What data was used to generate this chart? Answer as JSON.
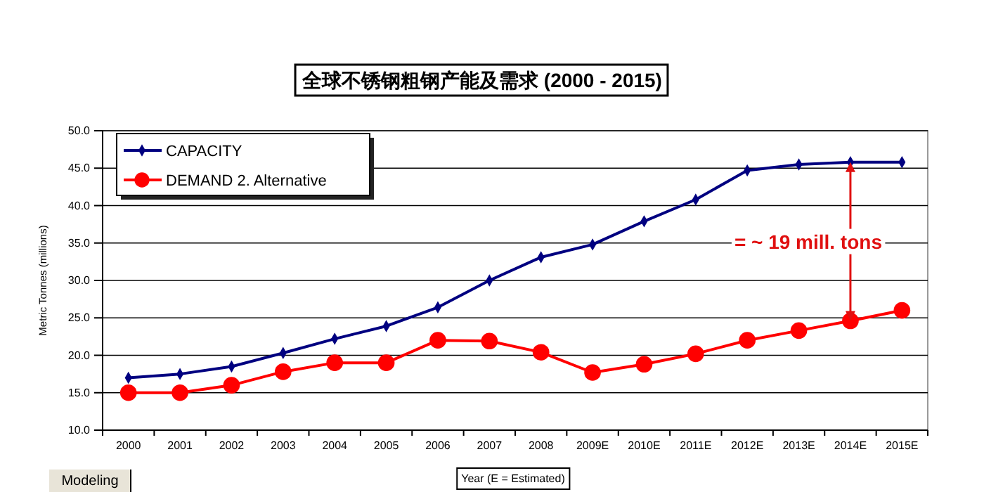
{
  "chart_data": {
    "type": "line",
    "title": "全球不锈钢粗钢产能及需求 (2000 - 2015)",
    "xlabel": "Year (E = Estimated)",
    "ylabel": "Metric Tonnes (millions)",
    "categories": [
      "2000",
      "2001",
      "2002",
      "2003",
      "2004",
      "2005",
      "2006",
      "2007",
      "2008",
      "2009E",
      "2010E",
      "2011E",
      "2012E",
      "2013E",
      "2014E",
      "2015E"
    ],
    "series": [
      {
        "name": "CAPACITY",
        "color": "#000080",
        "marker": "diamond",
        "values": [
          17.0,
          17.5,
          18.5,
          20.3,
          22.2,
          23.9,
          26.4,
          30.0,
          33.1,
          34.8,
          37.9,
          40.8,
          44.7,
          45.5,
          45.8,
          45.8
        ]
      },
      {
        "name": "DEMAND 2. Alternative",
        "color": "#ff0000",
        "marker": "circle",
        "values": [
          15.0,
          15.0,
          16.0,
          17.8,
          19.0,
          19.0,
          22.0,
          21.9,
          20.4,
          17.7,
          18.8,
          20.2,
          22.0,
          23.3,
          24.6,
          26.0
        ]
      }
    ],
    "ylim": [
      10,
      50
    ],
    "yticks": [
      {
        "value": 10,
        "label": "10.0"
      },
      {
        "value": 15,
        "label": "15.0"
      },
      {
        "value": 20,
        "label": "20.0"
      },
      {
        "value": 25,
        "label": "25.0"
      },
      {
        "value": 30,
        "label": "30.0"
      },
      {
        "value": 35,
        "label": "35.0"
      },
      {
        "value": 40,
        "label": "40.0"
      },
      {
        "value": 45,
        "label": "45.0"
      },
      {
        "value": 50,
        "label": "50.0"
      }
    ],
    "grid": "y",
    "legend": "top left",
    "annotations": [
      "= ~ 19 mill. tons",
      "Modeling"
    ]
  }
}
